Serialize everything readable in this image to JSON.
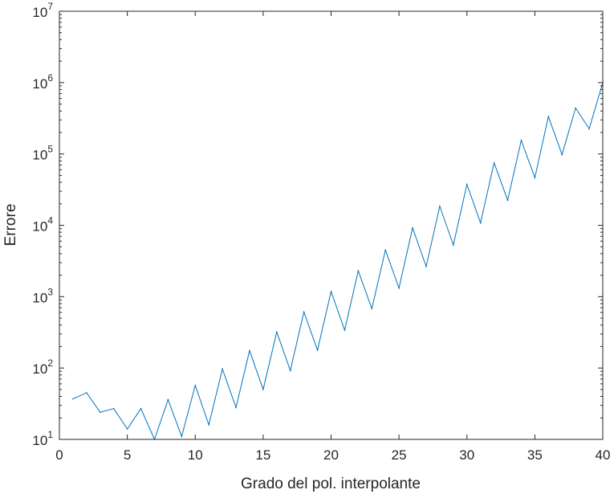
{
  "chart_data": {
    "type": "line",
    "title": "",
    "xlabel": "Grado del pol. interpolante",
    "ylabel": "Errore",
    "xlim": [
      0,
      40
    ],
    "ylim": [
      10,
      10000000
    ],
    "yscale": "log",
    "grid": false,
    "box": true,
    "x_ticks": [
      {
        "value": 0,
        "label": "0"
      },
      {
        "value": 5,
        "label": "5"
      },
      {
        "value": 10,
        "label": "10"
      },
      {
        "value": 15,
        "label": "15"
      },
      {
        "value": 20,
        "label": "20"
      },
      {
        "value": 25,
        "label": "25"
      },
      {
        "value": 30,
        "label": "30"
      },
      {
        "value": 35,
        "label": "35"
      },
      {
        "value": 40,
        "label": "40"
      }
    ],
    "y_ticks": [
      {
        "value": 10,
        "base": "10",
        "exp": "1"
      },
      {
        "value": 100,
        "base": "10",
        "exp": "2"
      },
      {
        "value": 1000,
        "base": "10",
        "exp": "3"
      },
      {
        "value": 10000,
        "base": "10",
        "exp": "4"
      },
      {
        "value": 100000,
        "base": "10",
        "exp": "5"
      },
      {
        "value": 1000000,
        "base": "10",
        "exp": "6"
      },
      {
        "value": 10000000,
        "base": "10",
        "exp": "7"
      }
    ],
    "series": [
      {
        "color": "#0072bd",
        "x": [
          1,
          2,
          3,
          4,
          5,
          6,
          7,
          8,
          9,
          10,
          11,
          12,
          13,
          14,
          15,
          16,
          17,
          18,
          19,
          20,
          21,
          22,
          23,
          24,
          25,
          26,
          27,
          28,
          29,
          30,
          31,
          32,
          33,
          34,
          35,
          36,
          37,
          38,
          39,
          40
        ],
        "y": [
          37,
          45,
          24,
          27,
          14,
          27,
          10,
          36,
          11,
          57,
          16,
          97,
          28,
          175,
          50,
          320,
          92,
          610,
          178,
          1180,
          340,
          2300,
          680,
          4500,
          1320,
          9200,
          2650,
          18500,
          5300,
          37500,
          10800,
          75000,
          22500,
          155000,
          46500,
          335000,
          98000,
          440000,
          225000,
          1000000
        ]
      }
    ]
  }
}
